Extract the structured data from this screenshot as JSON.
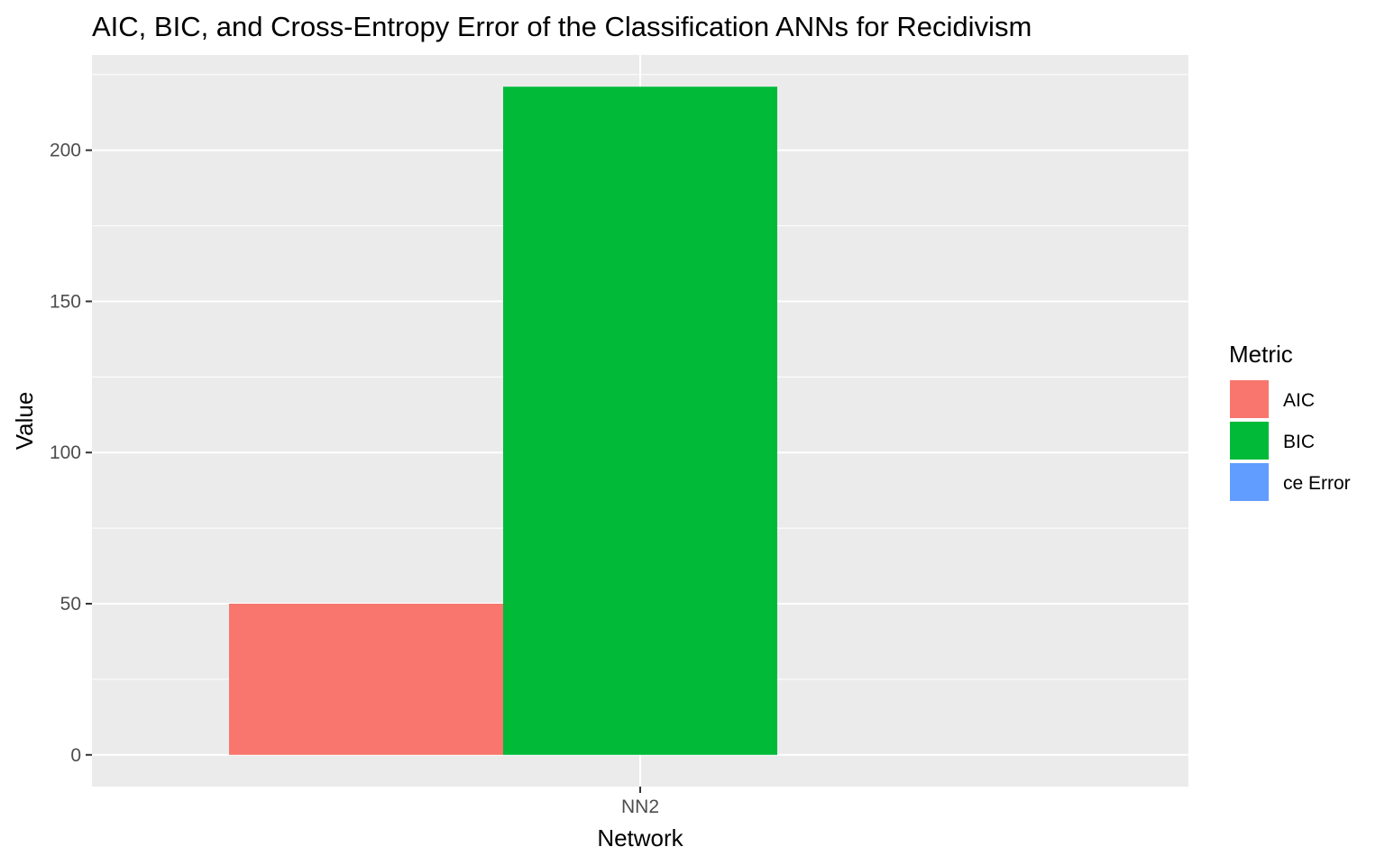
{
  "chart_data": {
    "type": "bar",
    "title": "AIC, BIC, and Cross-Entropy Error of the Classification ANNs for Recidivism",
    "xlabel": "Network",
    "ylabel": "Value",
    "categories": [
      "NN2"
    ],
    "series": [
      {
        "name": "AIC",
        "values": [
          50
        ],
        "color": "#F8766D"
      },
      {
        "name": "BIC",
        "values": [
          221
        ],
        "color": "#00BA38"
      },
      {
        "name": "ce Error",
        "values": [
          0
        ],
        "color": "#619CFF"
      }
    ],
    "ylim": [
      -10.5,
      231.5
    ],
    "yticks": [
      0,
      50,
      100,
      150,
      200
    ],
    "ytick_labels": [
      "0",
      "50",
      "100",
      "150",
      "200"
    ],
    "legend": {
      "title": "Metric",
      "position": "right"
    },
    "grid": true,
    "colors": {
      "panel": "#EBEBEB",
      "grid": "#FFFFFF",
      "text": "#000000",
      "tick_text": "#4D4D4D",
      "tick": "#333333"
    }
  }
}
